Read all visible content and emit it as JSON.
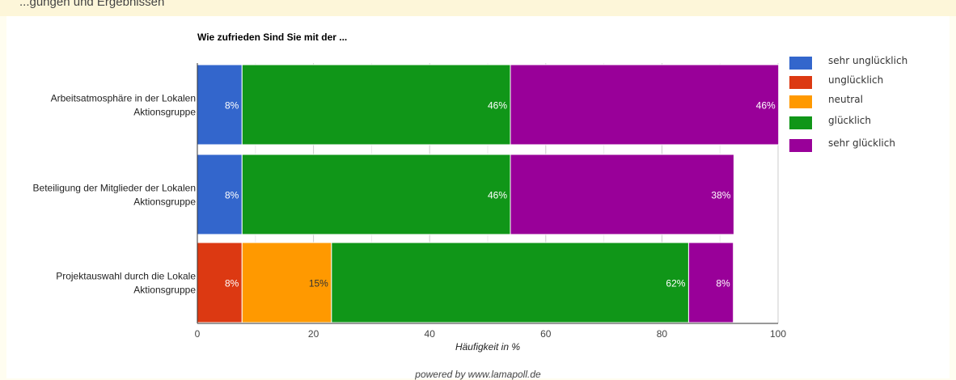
{
  "header_fragment": "...gungen und Ergebnissen",
  "footer": "powered by www.lamapoll.de",
  "colors": {
    "sehr_ungluecklich": "#3366cc",
    "ungluecklich": "#dc3912",
    "neutral": "#ff9900",
    "gluecklich": "#109618",
    "sehr_gluecklich": "#990099"
  },
  "chart_data": {
    "type": "bar",
    "orientation": "horizontal",
    "stacked": true,
    "title": "Wie zufrieden Sind Sie mit der ...",
    "xlabel": "Häufigkeit in %",
    "ylabel": "",
    "xlim": [
      0,
      100
    ],
    "xticks": [
      "0",
      "20",
      "40",
      "60",
      "80",
      "100"
    ],
    "grid": true,
    "legend_position": "right",
    "categories": [
      "Arbeitsatmosphäre in der Lokalen Aktionsgruppe",
      "Beteiligung der Mitglieder der Lokalen Aktionsgruppe",
      "Projektauswahl durch die Lokale Aktionsgruppe"
    ],
    "category_lines": [
      [
        "Arbeitsatmosphäre in der Lokalen",
        "Aktionsgruppe"
      ],
      [
        "Beteiligung der Mitglieder der Lokalen",
        "Aktionsgruppe"
      ],
      [
        "Projektauswahl durch die Lokale",
        "Aktionsgruppe"
      ]
    ],
    "series": [
      {
        "name": "sehr unglücklich",
        "color": "#3366cc",
        "values": [
          7.7,
          7.7,
          0
        ],
        "labels": [
          "8%",
          "8%",
          ""
        ]
      },
      {
        "name": "unglücklich",
        "color": "#dc3912",
        "values": [
          0,
          0,
          7.7
        ],
        "labels": [
          "",
          "",
          "8%"
        ]
      },
      {
        "name": "neutral",
        "color": "#ff9900",
        "values": [
          0,
          0,
          15.4
        ],
        "labels": [
          "",
          "",
          "15%"
        ]
      },
      {
        "name": "glücklich",
        "color": "#109618",
        "values": [
          46.2,
          46.2,
          61.5
        ],
        "labels": [
          "46%",
          "46%",
          "62%"
        ]
      },
      {
        "name": "sehr glücklich",
        "color": "#990099",
        "values": [
          46.2,
          38.5,
          7.7
        ],
        "labels": [
          "46%",
          "38%",
          "8%"
        ]
      }
    ]
  }
}
